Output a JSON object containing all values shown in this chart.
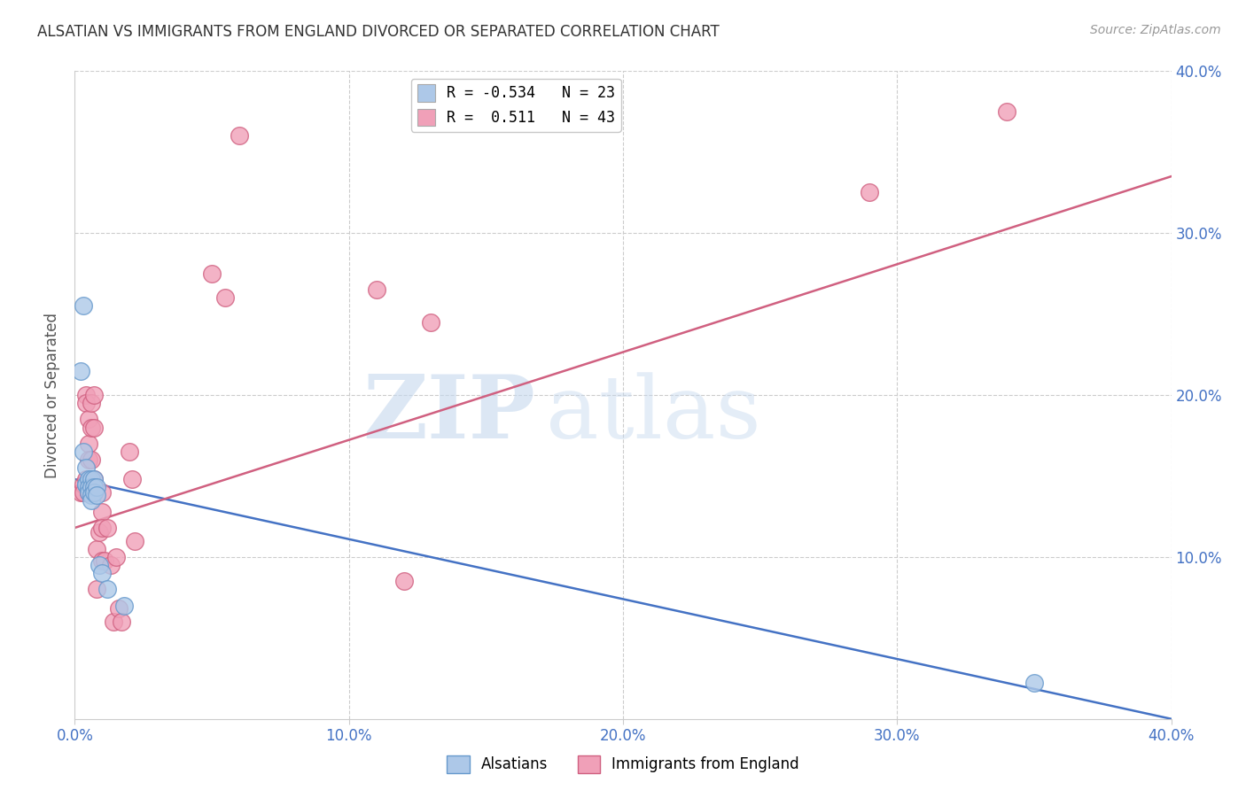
{
  "title": "ALSATIAN VS IMMIGRANTS FROM ENGLAND DIVORCED OR SEPARATED CORRELATION CHART",
  "source": "Source: ZipAtlas.com",
  "ylabel": "Divorced or Separated",
  "xlim": [
    0.0,
    0.4
  ],
  "ylim": [
    0.0,
    0.4
  ],
  "xticks": [
    0.0,
    0.1,
    0.2,
    0.3,
    0.4
  ],
  "yticks": [
    0.1,
    0.2,
    0.3,
    0.4
  ],
  "xtick_labels": [
    "0.0%",
    "10.0%",
    "20.0%",
    "30.0%",
    "40.0%"
  ],
  "ytick_labels_right": [
    "10.0%",
    "20.0%",
    "30.0%",
    "40.0%"
  ],
  "legend_entries": [
    {
      "label": "R = -0.534   N = 23",
      "color": "#adc8e8"
    },
    {
      "label": "R =  0.511   N = 43",
      "color": "#f0a0b8"
    }
  ],
  "alsatian_color": "#adc8e8",
  "alsatian_edge": "#6699cc",
  "england_color": "#f0a0b8",
  "england_edge": "#d06080",
  "blue_line_color": "#4472c4",
  "pink_line_color": "#d06080",
  "alsatian_points": [
    [
      0.003,
      0.255
    ],
    [
      0.002,
      0.215
    ],
    [
      0.003,
      0.165
    ],
    [
      0.004,
      0.155
    ],
    [
      0.004,
      0.145
    ],
    [
      0.004,
      0.145
    ],
    [
      0.005,
      0.148
    ],
    [
      0.005,
      0.143
    ],
    [
      0.005,
      0.14
    ],
    [
      0.006,
      0.148
    ],
    [
      0.006,
      0.143
    ],
    [
      0.006,
      0.138
    ],
    [
      0.006,
      0.135
    ],
    [
      0.007,
      0.148
    ],
    [
      0.007,
      0.143
    ],
    [
      0.007,
      0.14
    ],
    [
      0.008,
      0.143
    ],
    [
      0.008,
      0.138
    ],
    [
      0.009,
      0.095
    ],
    [
      0.01,
      0.09
    ],
    [
      0.012,
      0.08
    ],
    [
      0.018,
      0.07
    ],
    [
      0.35,
      0.022
    ]
  ],
  "england_points": [
    [
      0.002,
      0.14
    ],
    [
      0.003,
      0.145
    ],
    [
      0.003,
      0.14
    ],
    [
      0.004,
      0.148
    ],
    [
      0.004,
      0.2
    ],
    [
      0.004,
      0.195
    ],
    [
      0.005,
      0.185
    ],
    [
      0.005,
      0.17
    ],
    [
      0.005,
      0.16
    ],
    [
      0.005,
      0.145
    ],
    [
      0.005,
      0.14
    ],
    [
      0.006,
      0.195
    ],
    [
      0.006,
      0.18
    ],
    [
      0.006,
      0.16
    ],
    [
      0.007,
      0.2
    ],
    [
      0.007,
      0.18
    ],
    [
      0.007,
      0.148
    ],
    [
      0.007,
      0.14
    ],
    [
      0.008,
      0.105
    ],
    [
      0.008,
      0.08
    ],
    [
      0.009,
      0.115
    ],
    [
      0.01,
      0.14
    ],
    [
      0.01,
      0.128
    ],
    [
      0.01,
      0.118
    ],
    [
      0.01,
      0.098
    ],
    [
      0.011,
      0.098
    ],
    [
      0.012,
      0.118
    ],
    [
      0.013,
      0.095
    ],
    [
      0.014,
      0.06
    ],
    [
      0.015,
      0.1
    ],
    [
      0.016,
      0.068
    ],
    [
      0.017,
      0.06
    ],
    [
      0.02,
      0.165
    ],
    [
      0.021,
      0.148
    ],
    [
      0.022,
      0.11
    ],
    [
      0.05,
      0.275
    ],
    [
      0.055,
      0.26
    ],
    [
      0.06,
      0.36
    ],
    [
      0.11,
      0.265
    ],
    [
      0.12,
      0.085
    ],
    [
      0.13,
      0.245
    ],
    [
      0.29,
      0.325
    ],
    [
      0.34,
      0.375
    ]
  ],
  "blue_line": {
    "x_start": 0.0,
    "x_end": 0.4,
    "y_start": 0.148,
    "y_end": 0.0
  },
  "pink_line": {
    "x_start": 0.0,
    "x_end": 0.4,
    "y_start": 0.118,
    "y_end": 0.335
  },
  "watermark_zip": "ZIP",
  "watermark_atlas": "atlas",
  "background_color": "#ffffff",
  "grid_color": "#cccccc",
  "title_color": "#333333",
  "tick_color": "#4472c4",
  "ylabel_color": "#555555"
}
